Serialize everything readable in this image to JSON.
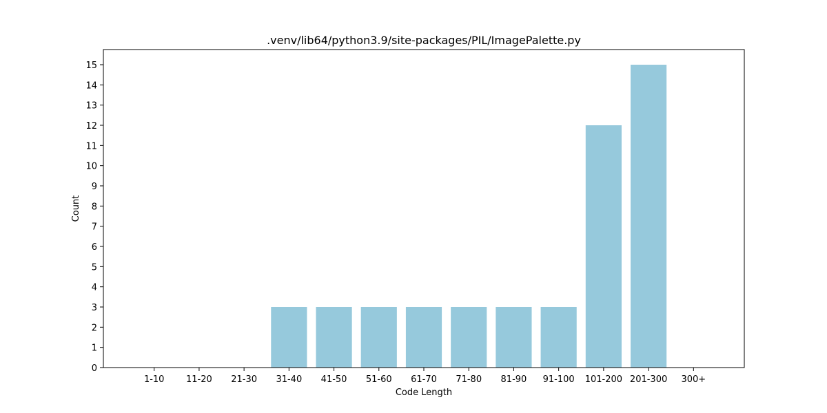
{
  "chart_data": {
    "type": "bar",
    "title": ".venv/lib64/python3.9/site-packages/PIL/ImagePalette.py",
    "xlabel": "Code Length",
    "ylabel": "Count",
    "categories": [
      "1-10",
      "11-20",
      "21-30",
      "31-40",
      "41-50",
      "51-60",
      "61-70",
      "71-80",
      "81-90",
      "91-100",
      "101-200",
      "201-300",
      "300+"
    ],
    "values": [
      0,
      0,
      0,
      3,
      3,
      3,
      3,
      3,
      3,
      3,
      12,
      15,
      0
    ],
    "ylim": [
      0,
      15.75
    ],
    "yticks": [
      0,
      1,
      2,
      3,
      4,
      5,
      6,
      7,
      8,
      9,
      10,
      11,
      12,
      13,
      14,
      15
    ],
    "grid": false,
    "legend": "none",
    "bar_color": "#96c9dc"
  }
}
